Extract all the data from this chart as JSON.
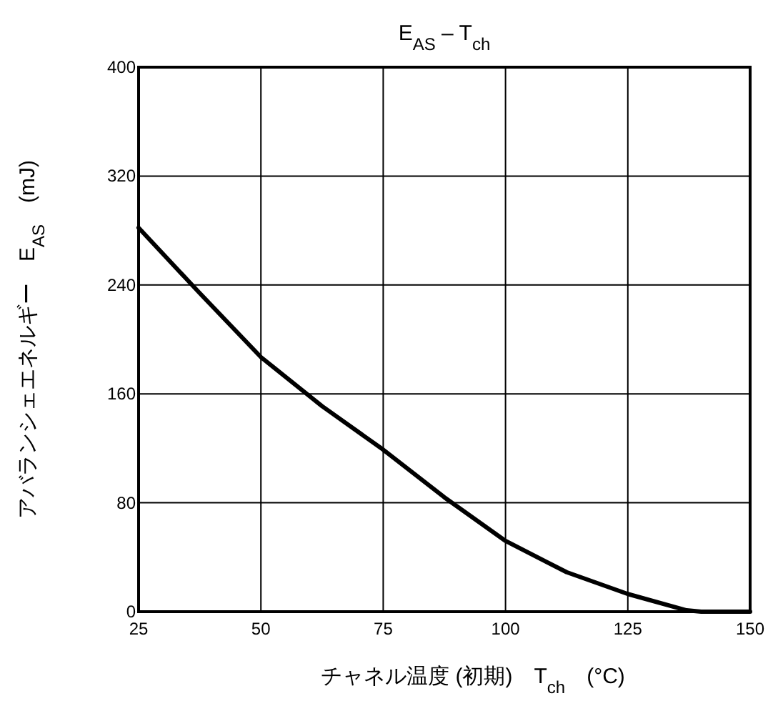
{
  "chart_data": {
    "type": "line",
    "title": "E$_{AS}$ – T$_{ch}$",
    "xlabel": "チャネル温度 (初期)　T$_{ch}$　(°C)",
    "ylabel": "アバランシェエネルギー　E$_{AS}$　(mJ)",
    "x": [
      25,
      37.5,
      50,
      62.5,
      75,
      87.5,
      100,
      112.5,
      125,
      137,
      140,
      150
    ],
    "values": [
      282,
      234,
      187,
      151,
      119,
      84,
      52,
      29,
      13,
      1,
      0,
      0
    ],
    "color": "#000000",
    "line_style": "solid",
    "grid": true,
    "xlim": [
      25,
      150
    ],
    "xticks": [
      25,
      50,
      75,
      100,
      125,
      150
    ],
    "ylim": [
      0,
      400
    ],
    "yticks": [
      0,
      80,
      160,
      240,
      320,
      400
    ]
  }
}
